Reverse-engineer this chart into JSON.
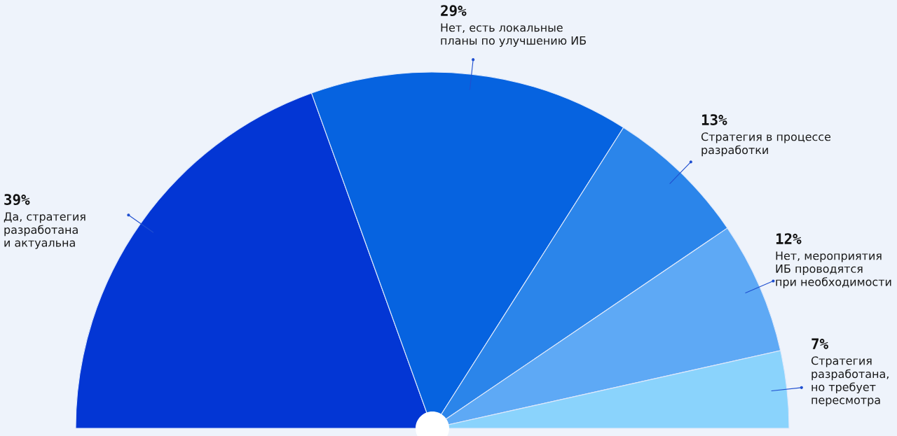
{
  "chart_data": {
    "type": "pie",
    "categories": [
      "Да, стратегия\nразработана\nи актуальна",
      "Нет, есть локальные\nпланы по улучшению ИБ",
      "Стратегия в процессе\nразработки",
      "Нет, мероприятия\nИБ проводятся\nпри необходимости",
      "Стратегия\nразработана,\nно требует\nпересмотра"
    ],
    "values": [
      39,
      29,
      13,
      12,
      7
    ],
    "value_labels": [
      "39%",
      "29%",
      "13%",
      "12%",
      "7%"
    ],
    "colors": [
      "#0336d4",
      "#0663e0",
      "#2b85ea",
      "#5ea9f5",
      "#8ad3fc"
    ]
  }
}
